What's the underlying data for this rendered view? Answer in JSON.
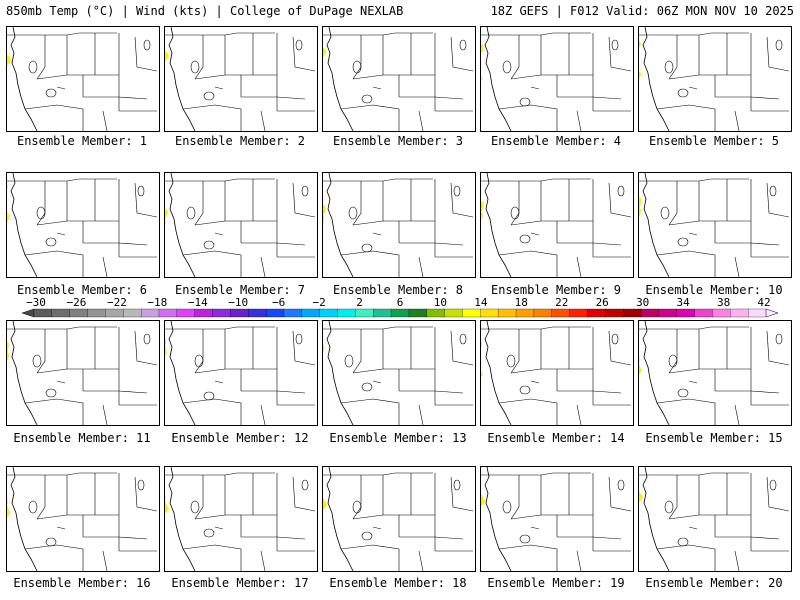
{
  "header": {
    "left": "850mb Temp (°C) | Wind (kts) | College of DuPage NEXLAB",
    "right": "18Z GEFS | F012 Valid: 06Z MON NOV 10 2025"
  },
  "members": [
    "Ensemble Member: 1",
    "Ensemble Member: 2",
    "Ensemble Member: 3",
    "Ensemble Member: 4",
    "Ensemble Member: 5",
    "Ensemble Member: 6",
    "Ensemble Member: 7",
    "Ensemble Member: 8",
    "Ensemble Member: 9",
    "Ensemble Member: 10",
    "Ensemble Member: 11",
    "Ensemble Member: 12",
    "Ensemble Member: 13",
    "Ensemble Member: 14",
    "Ensemble Member: 15",
    "Ensemble Member: 16",
    "Ensemble Member: 17",
    "Ensemble Member: 18",
    "Ensemble Member: 19",
    "Ensemble Member: 20"
  ],
  "colorbar": {
    "ticks": [
      "−30",
      "−26",
      "−22",
      "−18",
      "−14",
      "−10",
      "−6",
      "−2",
      "2",
      "6",
      "10",
      "14",
      "18",
      "22",
      "26",
      "30",
      "34",
      "38",
      "42"
    ],
    "colors": [
      "#5c5c5c",
      "#6e6e6e",
      "#808080",
      "#939393",
      "#a6a6a6",
      "#b8b8b8",
      "#c9a0dc",
      "#d070f0",
      "#e040ff",
      "#c020e0",
      "#8a2be2",
      "#6a1fd0",
      "#3a2fe0",
      "#1a45ff",
      "#1e78ff",
      "#00a8ff",
      "#00d0ff",
      "#00f0f0",
      "#40f0c0",
      "#20c090",
      "#10a050",
      "#208020",
      "#80c000",
      "#c8e000",
      "#ffff00",
      "#ffe000",
      "#ffc000",
      "#ffa000",
      "#ff8000",
      "#ff5000",
      "#ff2000",
      "#e00000",
      "#c00000",
      "#a00000",
      "#c00060",
      "#d00090",
      "#e000b0",
      "#f040d0",
      "#ff80e0",
      "#ffb0f0",
      "#ffd8ff"
    ]
  },
  "map_colors": [
    "#fff200",
    "#e8f000",
    "#bfe400",
    "#8ed400",
    "#55bb1e",
    "#1fa43c",
    "#00b48c",
    "#00c8c8",
    "#00ddee",
    "#00b0ff",
    "#0080ff",
    "#1f4ff0",
    "#3a27d8",
    "#7a1fe0",
    "#b020e8",
    "#e030f0",
    "#ff40ff"
  ]
}
